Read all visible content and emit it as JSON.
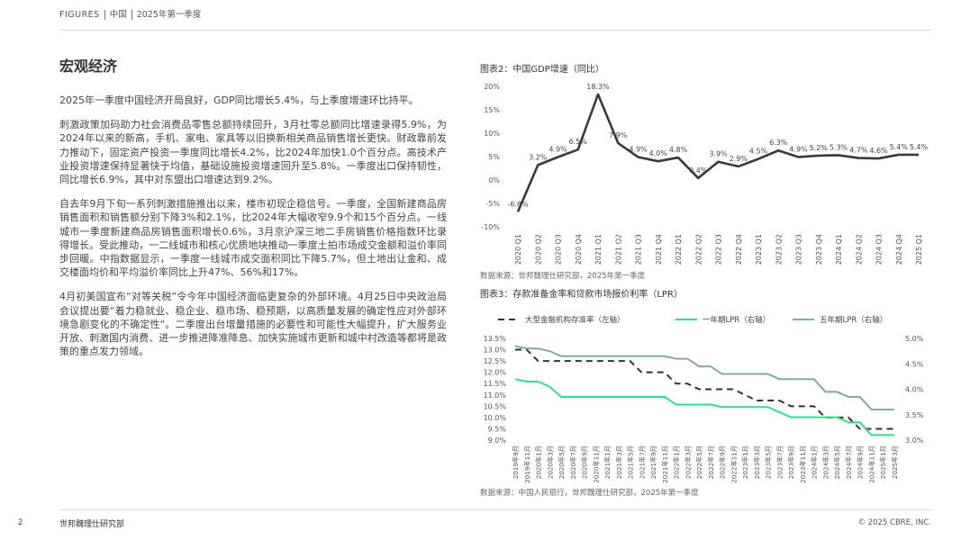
{
  "header": {
    "series": "FIGURES",
    "region": "中国",
    "period": "2025年第一季度"
  },
  "section_title": "宏观经济",
  "paragraphs": [
    "2025年一季度中国经济开局良好，GDP同比增长5.4%，与上季度增速环比持平。",
    "刺激政策加码助力社会消费品零售总额持续回升，3月社零总额同比增速录得5.9%，为2024年以来的新高，手机、家电、家具等以旧换新相关商品销售增长更快。财政靠前发力推动下，固定资产投资一季度同比增长4.2%，比2024年加快1.0个百分点。高技术产业投资增速保持显著快于均值，基础设施投资增速回升至5.8%。一季度出口保持韧性，同比增长6.9%，其中对东盟出口增速达到9.2%。",
    "自去年9月下旬一系列刺激措施推出以来，楼市初现企稳信号。一季度，全国新建商品房销售面积和销售额分别下降3%和2.1%，比2024年大幅收窄9.9个和15个百分点。一线城市一季度新建商品房销售面积增长0.6%，3月京沪深三地二手房销售价格指数环比录得增长。受此推动，一二线城市和核心优质地块推动一季度土拍市场成交金额和溢价率同步回暖。中指数据显示，一季度一线城市成交面积同比下降5.7%，但土地出让金和、成交楼面均价和平均溢价率同比上升47%、56%和17%。",
    "4月初美国宣布“对等关税”令今年中国经济面临更复杂的外部环境。4月25日中央政治局会议提出要“着力稳就业、稳企业、稳市场、稳预期，以高质量发展的确定性应对外部环境急剧变化的不确定性“。二季度出台增量措施的必要性和可能性大幅提升，扩大服务业开放、刺激国内消费、进一步推进降准降息、加快实施城市更新和城中村改造等都将是政策的重点发力领域。"
  ],
  "chart_data": [
    {
      "type": "line",
      "title": "图表2：中国GDP增速（同比）",
      "categories": [
        "2020 Q1",
        "2020 Q2",
        "2020 Q3",
        "2020 Q4",
        "2021 Q1",
        "2021 Q2",
        "2021 Q3",
        "2021 Q4",
        "2022 Q1",
        "2022 Q2",
        "2022 Q3",
        "2022 Q4",
        "2023 Q1",
        "2023 Q2",
        "2023 Q3",
        "2023 Q4",
        "2024 Q1",
        "2024 Q2",
        "2024 Q3",
        "2024 Q4",
        "2025 Q1"
      ],
      "values": [
        -6.8,
        3.2,
        4.9,
        6.5,
        18.3,
        7.9,
        4.9,
        4.0,
        4.8,
        0.4,
        3.9,
        2.9,
        4.5,
        6.3,
        4.9,
        5.2,
        5.3,
        4.7,
        4.6,
        5.4,
        5.4
      ],
      "value_labels": [
        "-6.8%",
        "3.2%",
        "4.9%",
        "6.5%",
        "18.3%",
        "7.9%",
        "4.9%",
        "4.0%",
        "4.8%",
        "0.4%",
        "3.9%",
        "2.9%",
        "4.5%",
        "6.3%",
        "4.9%",
        "5.2%",
        "5.3%",
        "4.7%",
        "4.6%",
        "5.4%",
        "5.4%"
      ],
      "color": "#3a3a3a",
      "ylim": [
        -10,
        20
      ],
      "yticks": [
        {
          "value": -10,
          "label": "-10%"
        },
        {
          "value": -5,
          "label": "-5%"
        },
        {
          "value": 0,
          "label": "0%"
        },
        {
          "value": 5,
          "label": "5%"
        },
        {
          "value": 10,
          "label": "10%"
        },
        {
          "value": 15,
          "label": "15%"
        },
        {
          "value": 20,
          "label": "20%"
        }
      ],
      "grid": false,
      "source": "数据来源：世邦魏理仕研究部，2025年第一季度"
    },
    {
      "type": "line",
      "title": "图表3：存款准备金率和贷款市场报价利率（LPR）",
      "categories": [
        "2019年9月",
        "2019年11月",
        "2020年1月",
        "2020年3月",
        "2020年5月",
        "2020年7月",
        "2020年9月",
        "2020年11月",
        "2021年1月",
        "2021年3月",
        "2021年5月",
        "2021年7月",
        "2021年9月",
        "2021年11月",
        "2022年1月",
        "2022年3月",
        "2022年5月",
        "2022年7月",
        "2022年9月",
        "2022年11月",
        "2023年1月",
        "2023年3月",
        "2023年5月",
        "2023年7月",
        "2023年9月",
        "2023年11月",
        "2024年1月",
        "2024年3月",
        "2024年5月",
        "2024年7月",
        "2024年9月",
        "2024年11月",
        "2025年1月",
        "2025年3月"
      ],
      "series": [
        {
          "name": "大型金融机构存准率（左轴）",
          "color": "#333333",
          "line_style": "dashed",
          "values": [
            13.0,
            13.0,
            12.5,
            12.5,
            12.5,
            12.5,
            12.5,
            12.5,
            12.5,
            12.5,
            12.5,
            12.0,
            12.0,
            12.0,
            11.5,
            11.5,
            11.25,
            11.25,
            11.25,
            11.25,
            11.0,
            10.75,
            10.75,
            10.75,
            10.5,
            10.5,
            10.5,
            10.0,
            10.0,
            10.0,
            9.5,
            9.5,
            9.5,
            9.5
          ]
        },
        {
          "name": "一年期LPR（右轴）",
          "color": "#2fe08a",
          "line_style": "solid",
          "axis": "y2",
          "values": [
            4.2,
            4.15,
            4.15,
            4.05,
            3.85,
            3.85,
            3.85,
            3.85,
            3.85,
            3.85,
            3.85,
            3.85,
            3.85,
            3.85,
            3.7,
            3.7,
            3.7,
            3.7,
            3.65,
            3.65,
            3.65,
            3.65,
            3.65,
            3.55,
            3.45,
            3.45,
            3.45,
            3.45,
            3.45,
            3.35,
            3.35,
            3.1,
            3.1,
            3.1
          ]
        },
        {
          "name": "五年期LPR（右轴）",
          "color": "#86a99c",
          "line_style": "solid",
          "axis": "y2",
          "values": [
            4.85,
            4.8,
            4.8,
            4.75,
            4.65,
            4.65,
            4.65,
            4.65,
            4.65,
            4.65,
            4.65,
            4.65,
            4.65,
            4.65,
            4.6,
            4.6,
            4.45,
            4.45,
            4.3,
            4.3,
            4.3,
            4.3,
            4.3,
            4.2,
            4.2,
            4.2,
            4.2,
            3.95,
            3.95,
            3.85,
            3.85,
            3.6,
            3.6,
            3.6
          ]
        }
      ],
      "ylim": [
        9.0,
        13.5
      ],
      "yticks": [
        {
          "value": 9.0,
          "label": "9.0%"
        },
        {
          "value": 9.5,
          "label": "9.5%"
        },
        {
          "value": 10.0,
          "label": "10.0%"
        },
        {
          "value": 10.5,
          "label": "10.5%"
        },
        {
          "value": 11.0,
          "label": "11.0%"
        },
        {
          "value": 11.5,
          "label": "11.5%"
        },
        {
          "value": 12.0,
          "label": "12.0%"
        },
        {
          "value": 12.5,
          "label": "12.5%"
        },
        {
          "value": 13.0,
          "label": "13.0%"
        },
        {
          "value": 13.5,
          "label": "13.5%"
        }
      ],
      "y2lim": [
        3.0,
        5.0
      ],
      "y2ticks": [
        {
          "value": 3.0,
          "label": "3.0%"
        },
        {
          "value": 3.5,
          "label": "3.5%"
        },
        {
          "value": 4.0,
          "label": "4.0%"
        },
        {
          "value": 4.5,
          "label": "4.5%"
        },
        {
          "value": 5.0,
          "label": "5.0%"
        }
      ],
      "grid": false,
      "legend": "top",
      "source": "数据来源：中国人民银行，世邦魏理仕研究部，2025年第一季度"
    }
  ],
  "footer": {
    "page": "2",
    "department": "世邦魏理仕研究部",
    "copyright": "© 2025 CBRE, INC."
  }
}
